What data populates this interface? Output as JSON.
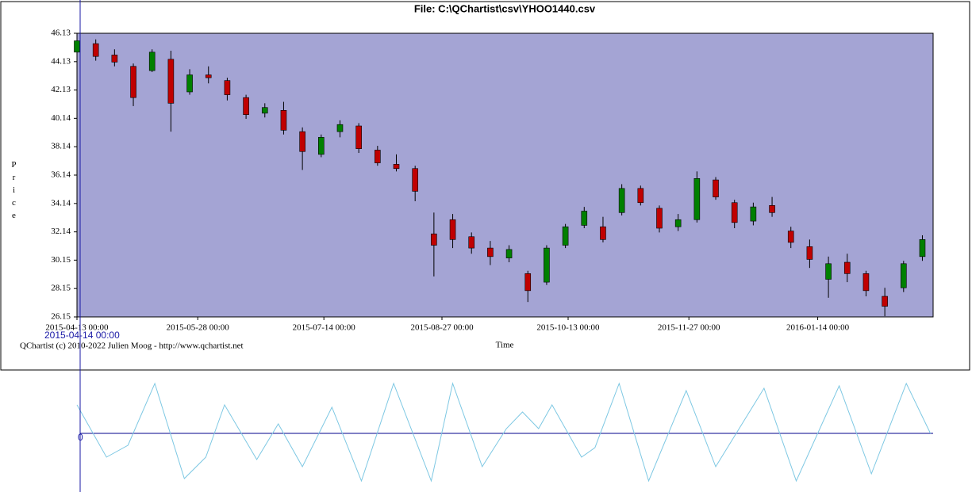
{
  "chart_data": [
    {
      "type": "candlestick",
      "title": "File: C:\\QChartist\\csv\\YHOO1440.csv",
      "ylabel": "Price",
      "xlabel": "Time",
      "footer": "QChartist (c) 2010-2022 Julien Moog - http://www.qchartist.net",
      "cursor_label": "2015-04-14 00:00",
      "x": [
        "2015-04-13 00:00",
        "2015-04-20 00:00",
        "2015-04-27 00:00",
        "2015-05-04 00:00",
        "2015-05-11 00:00",
        "2015-05-18 00:00",
        "2015-05-25 00:00",
        "2015-06-01 00:00",
        "2015-06-08 00:00",
        "2015-06-15 00:00",
        "2015-06-22 00:00",
        "2015-06-29 00:00",
        "2015-07-06 00:00",
        "2015-07-13 00:00",
        "2015-07-20 00:00",
        "2015-07-27 00:00",
        "2015-08-03 00:00",
        "2015-08-10 00:00",
        "2015-08-17 00:00",
        "2015-08-24 00:00",
        "2015-08-31 00:00",
        "2015-09-07 00:00",
        "2015-09-14 00:00",
        "2015-09-21 00:00",
        "2015-09-28 00:00",
        "2015-10-05 00:00",
        "2015-10-12 00:00",
        "2015-10-19 00:00",
        "2015-10-26 00:00",
        "2015-11-02 00:00",
        "2015-11-09 00:00",
        "2015-11-16 00:00",
        "2015-11-23 00:00",
        "2015-11-30 00:00",
        "2015-12-07 00:00",
        "2015-12-14 00:00",
        "2015-12-21 00:00",
        "2015-12-28 00:00",
        "2016-01-04 00:00",
        "2016-01-11 00:00",
        "2016-01-18 00:00",
        "2016-01-25 00:00",
        "2016-02-01 00:00",
        "2016-02-08 00:00",
        "2016-02-15 00:00",
        "2016-02-22 00:00"
      ],
      "open": [
        44.8,
        45.4,
        44.6,
        43.8,
        43.5,
        44.3,
        42.0,
        43.2,
        42.8,
        41.6,
        40.5,
        40.7,
        39.2,
        37.6,
        39.2,
        39.6,
        37.9,
        36.9,
        36.6,
        32.0,
        33.0,
        31.8,
        31.0,
        30.3,
        29.2,
        28.6,
        31.2,
        32.6,
        32.5,
        33.5,
        35.2,
        33.8,
        32.5,
        33.0,
        35.8,
        34.2,
        32.9,
        34.0,
        32.2,
        31.1,
        28.8,
        30.0,
        29.2,
        27.6,
        28.2,
        30.4
      ],
      "high": [
        45.9,
        45.7,
        45.0,
        44.0,
        45.0,
        44.9,
        43.6,
        43.8,
        43.0,
        41.8,
        41.2,
        41.3,
        39.5,
        39.0,
        40.0,
        39.8,
        38.2,
        37.6,
        36.8,
        33.5,
        33.4,
        32.1,
        31.5,
        31.2,
        29.4,
        31.2,
        32.7,
        33.9,
        33.2,
        35.5,
        35.4,
        34.0,
        33.4,
        36.4,
        36.0,
        34.4,
        34.2,
        34.6,
        32.5,
        31.6,
        30.4,
        30.6,
        29.4,
        28.2,
        30.1,
        31.9
      ],
      "low": [
        44.6,
        44.2,
        43.8,
        41.0,
        43.4,
        39.2,
        41.8,
        42.6,
        41.4,
        40.1,
        40.2,
        39.0,
        36.5,
        37.4,
        38.8,
        37.7,
        36.8,
        36.4,
        34.3,
        29.0,
        31.0,
        30.6,
        29.8,
        30.0,
        27.2,
        28.4,
        31.0,
        32.4,
        31.4,
        33.3,
        34.0,
        32.1,
        32.2,
        32.8,
        34.4,
        32.4,
        32.6,
        33.2,
        31.0,
        29.6,
        27.5,
        28.6,
        27.6,
        26.2,
        27.9,
        30.1
      ],
      "close": [
        45.6,
        44.5,
        44.1,
        41.6,
        44.8,
        41.2,
        43.2,
        43.0,
        41.8,
        40.4,
        40.9,
        39.3,
        37.8,
        38.8,
        39.7,
        38.0,
        37.0,
        36.6,
        35.0,
        31.2,
        31.6,
        31.0,
        30.4,
        30.9,
        28.0,
        31.0,
        32.5,
        33.6,
        31.6,
        35.2,
        34.2,
        32.4,
        33.0,
        35.9,
        34.6,
        32.8,
        33.9,
        33.5,
        31.4,
        30.2,
        29.9,
        29.2,
        28.0,
        26.9,
        29.9,
        31.6
      ],
      "up_color": "#008000",
      "down_color": "#c00000",
      "background": "#a4a4d4",
      "xlim": [
        "2015-04-13 00:00",
        "2016-02-26 00:00"
      ],
      "xticks": [
        "2015-04-13 00:00",
        "2015-05-28 00:00",
        "2015-07-14 00:00",
        "2015-08-27 00:00",
        "2015-10-13 00:00",
        "2015-11-27 00:00",
        "2016-01-14 00:00"
      ],
      "ylim": [
        26.15,
        46.13
      ],
      "yticks": [
        26.15,
        28.15,
        30.15,
        32.14,
        34.14,
        36.14,
        38.14,
        40.14,
        42.13,
        44.13,
        46.13
      ]
    },
    {
      "type": "line",
      "x": [
        "2015-04-13 00:00",
        "2015-04-24 00:00",
        "2015-05-02 00:00",
        "2015-05-12 00:00",
        "2015-05-23 00:00",
        "2015-05-31 00:00",
        "2015-06-07 00:00",
        "2015-06-19 00:00",
        "2015-06-27 00:00",
        "2015-07-06 00:00",
        "2015-07-17 00:00",
        "2015-07-28 00:00",
        "2015-08-09 00:00",
        "2015-08-23 00:00",
        "2015-08-31 00:00",
        "2015-09-11 00:00",
        "2015-09-20 00:00",
        "2015-09-26 00:00",
        "2015-10-02 00:00",
        "2015-10-07 00:00",
        "2015-10-18 00:00",
        "2015-10-23 00:00",
        "2015-11-01 00:00",
        "2015-11-12 00:00",
        "2015-11-26 00:00",
        "2015-12-07 00:00",
        "2015-12-25 00:00",
        "2016-01-06 00:00",
        "2016-01-22 00:00",
        "2016-02-03 00:00",
        "2016-02-16 00:00",
        "2016-02-25 00:00"
      ],
      "values": [
        0.6,
        -0.5,
        -0.25,
        1.05,
        -0.95,
        -0.5,
        0.6,
        -0.55,
        0.2,
        -0.7,
        0.55,
        -1.0,
        1.05,
        -1.0,
        1.05,
        -0.7,
        0.1,
        0.45,
        0.1,
        0.6,
        -0.5,
        -0.3,
        1.05,
        -1.0,
        0.9,
        -0.7,
        0.95,
        -1.0,
        1.0,
        -0.85,
        1.05,
        0.0
      ],
      "color": "#7ec8e3",
      "xlim": [
        "2015-04-13 00:00",
        "2016-02-26 00:00"
      ],
      "ylim": [
        -1.1,
        1.1
      ],
      "yticks": [
        0
      ]
    }
  ]
}
